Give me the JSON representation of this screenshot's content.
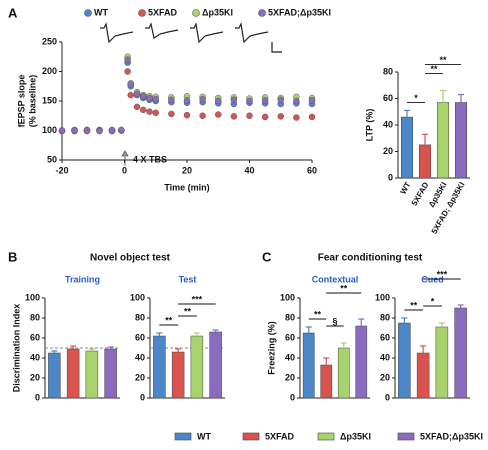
{
  "panel_labels": [
    "A",
    "B",
    "C"
  ],
  "headings": [
    "Novel object test",
    "Fear conditioning test"
  ],
  "legend": [
    {
      "name": "WT",
      "color": "#4a86c8"
    },
    {
      "name": "5XFAD",
      "color": "#d9534f"
    },
    {
      "name": "Δp35KI",
      "color": "#a8d26b"
    },
    {
      "name": "5XFAD;Δp35KI",
      "color": "#8a6bbf"
    }
  ],
  "chart_data": [
    {
      "type": "scatter",
      "y_label": [
        "fEPSP slope",
        "(% baseline)"
      ],
      "x_label": "Time (min)",
      "annotation": "4 X TBS",
      "x": [
        -20,
        -16,
        -12,
        -8,
        -4,
        -1,
        1,
        2,
        4,
        6,
        8,
        10,
        15,
        20,
        25,
        30,
        35,
        40,
        45,
        50,
        55,
        60
      ],
      "xlim": [
        -20,
        60
      ],
      "xticks": [
        -20,
        0,
        20,
        40,
        60
      ],
      "ylim": [
        50,
        250
      ],
      "yticks": [
        50,
        100,
        150,
        200,
        250
      ],
      "series": [
        {
          "name": "WT",
          "color": "#4a86c8",
          "values": [
            100,
            99,
            100,
            101,
            100,
            100,
            215,
            175,
            160,
            155,
            152,
            150,
            148,
            147,
            148,
            146,
            145,
            147,
            146,
            145,
            146,
            145
          ]
        },
        {
          "name": "5XFAD",
          "color": "#d9534f",
          "values": [
            99,
            100,
            101,
            100,
            99,
            100,
            200,
            160,
            140,
            135,
            132,
            130,
            128,
            126,
            125,
            127,
            124,
            125,
            123,
            124,
            122,
            123
          ]
        },
        {
          "name": "Δp35KI",
          "color": "#a8d26b",
          "values": [
            100,
            101,
            99,
            100,
            101,
            100,
            225,
            180,
            165,
            160,
            158,
            157,
            156,
            158,
            157,
            155,
            156,
            154,
            156,
            155,
            157,
            155
          ]
        },
        {
          "name": "5XFAD;Δp35KI",
          "color": "#8a6bbf",
          "values": [
            100,
            100,
            100,
            99,
            100,
            101,
            220,
            178,
            162,
            158,
            155,
            153,
            152,
            151,
            153,
            150,
            152,
            150,
            151,
            152,
            150,
            151
          ]
        }
      ]
    },
    {
      "type": "bar",
      "y_label": "LTP (%)",
      "categories": [
        "WT",
        "5XFAD",
        "Δp35KI",
        "5XFAD; Δp35KI"
      ],
      "values": [
        46,
        25,
        57,
        57
      ],
      "errors": [
        5,
        8,
        9,
        6
      ],
      "colors": [
        "#4a86c8",
        "#d9534f",
        "#a8d26b",
        "#8a6bbf"
      ],
      "ylim": [
        0,
        80
      ],
      "yticks": [
        0,
        20,
        40,
        60,
        80
      ],
      "brackets": [
        {
          "from": 0,
          "to": 1,
          "label": "*"
        },
        {
          "from": 1,
          "to": 2,
          "label": "**"
        },
        {
          "from": 1,
          "to": 3,
          "label": "**"
        }
      ]
    },
    {
      "type": "bar",
      "subtitle": "Training",
      "y_label": "Discrimination Index",
      "values": [
        45,
        49,
        47,
        49
      ],
      "errors": [
        2,
        3,
        2,
        2
      ],
      "colors": [
        "#4a86c8",
        "#d9534f",
        "#a8d26b",
        "#8a6bbf"
      ],
      "ylim": [
        0,
        100
      ],
      "yticks": [
        0,
        20,
        40,
        60,
        80,
        100
      ],
      "hline": 50,
      "brackets": []
    },
    {
      "type": "bar",
      "subtitle": "Test",
      "values": [
        62,
        46,
        62,
        66
      ],
      "errors": [
        3,
        3,
        3,
        2
      ],
      "colors": [
        "#4a86c8",
        "#d9534f",
        "#a8d26b",
        "#8a6bbf"
      ],
      "ylim": [
        0,
        100
      ],
      "yticks": [
        0,
        20,
        40,
        60,
        80,
        100
      ],
      "hline": 50,
      "brackets": [
        {
          "from": 0,
          "to": 1,
          "label": "**"
        },
        {
          "from": 1,
          "to": 2,
          "label": "**"
        },
        {
          "from": 1,
          "to": 3,
          "label": "***"
        }
      ]
    },
    {
      "type": "bar",
      "subtitle": "Contextual",
      "y_label": "Freezing (%)",
      "values": [
        65,
        33,
        50,
        72
      ],
      "errors": [
        6,
        7,
        5,
        7
      ],
      "colors": [
        "#4a86c8",
        "#d9534f",
        "#a8d26b",
        "#8a6bbf"
      ],
      "ylim": [
        0,
        100
      ],
      "yticks": [
        0,
        20,
        40,
        60,
        80,
        100
      ],
      "brackets": [
        {
          "from": 0,
          "to": 1,
          "label": "**"
        },
        {
          "from": 1,
          "to": 2,
          "label": "§"
        },
        {
          "from": 1,
          "to": 3,
          "label": "**"
        }
      ]
    },
    {
      "type": "bar",
      "subtitle": "Cued",
      "values": [
        75,
        45,
        71,
        90
      ],
      "errors": [
        5,
        7,
        4,
        3
      ],
      "colors": [
        "#4a86c8",
        "#d9534f",
        "#a8d26b",
        "#8a6bbf"
      ],
      "ylim": [
        0,
        100
      ],
      "yticks": [
        0,
        20,
        40,
        60,
        80,
        100
      ],
      "brackets": [
        {
          "from": 0,
          "to": 1,
          "label": "**"
        },
        {
          "from": 1,
          "to": 2,
          "label": "*"
        },
        {
          "from": 1,
          "to": 3,
          "label": "***"
        }
      ]
    }
  ]
}
